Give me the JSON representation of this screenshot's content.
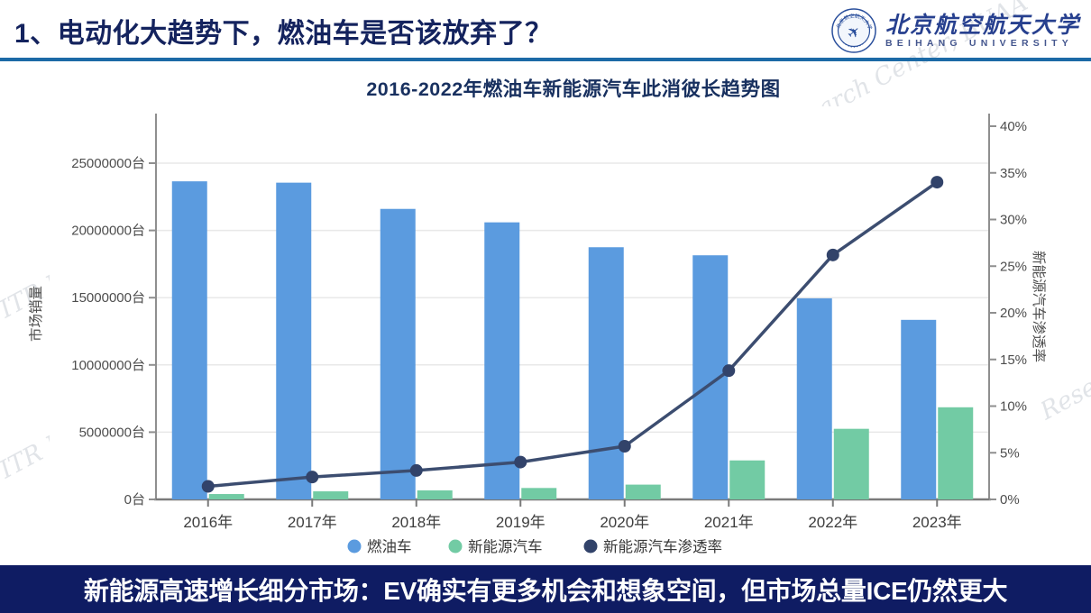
{
  "header": {
    "title": "1、电动化大趋势下，燃油车是否该放弃了？",
    "logo": {
      "cn": "北京航空航天大学",
      "en": "BEIHANG UNIVERSITY"
    }
  },
  "watermark": {
    "text": "ITR Research Center, BUAA"
  },
  "chart_data": {
    "type": "bar",
    "title": "2016-2022年燃油车新能源汽车此消彼长趋势图",
    "categories": [
      "2016年",
      "2017年",
      "2018年",
      "2019年",
      "2020年",
      "2021年",
      "2022年",
      "2023年"
    ],
    "series": [
      {
        "name": "燃油车",
        "type": "bar",
        "axis": "left",
        "color": "#5b9bdf",
        "values": [
          23650000,
          23550000,
          21600000,
          20600000,
          18750000,
          18150000,
          14950000,
          13350000
        ]
      },
      {
        "name": "新能源汽车",
        "type": "bar",
        "axis": "left",
        "color": "#72cba4",
        "values": [
          400000,
          600000,
          670000,
          850000,
          1100000,
          2900000,
          5250000,
          6850000
        ]
      },
      {
        "name": "新能源汽车渗透率",
        "type": "line",
        "axis": "right",
        "color": "#3c4d70",
        "dot_color": "#32436a",
        "values_pct": [
          1.4,
          2.4,
          3.1,
          4.0,
          5.7,
          13.8,
          26.2,
          34.0
        ]
      }
    ],
    "left_axis": {
      "name": "市场销量",
      "unit": "台",
      "min": 0,
      "max": 25000000,
      "step": 5000000
    },
    "right_axis": {
      "name": "新能源汽车渗透率",
      "unit": "%",
      "min": 0,
      "max": 40,
      "step": 5
    },
    "grid": true,
    "legend_position": "bottom",
    "legend": [
      "燃油车",
      "新能源汽车",
      "新能源汽车渗透率"
    ]
  },
  "footer": {
    "text": "新能源高速增长细分市场：EV确实有更多机会和想象空间，但市场总量ICE仍然更大"
  }
}
